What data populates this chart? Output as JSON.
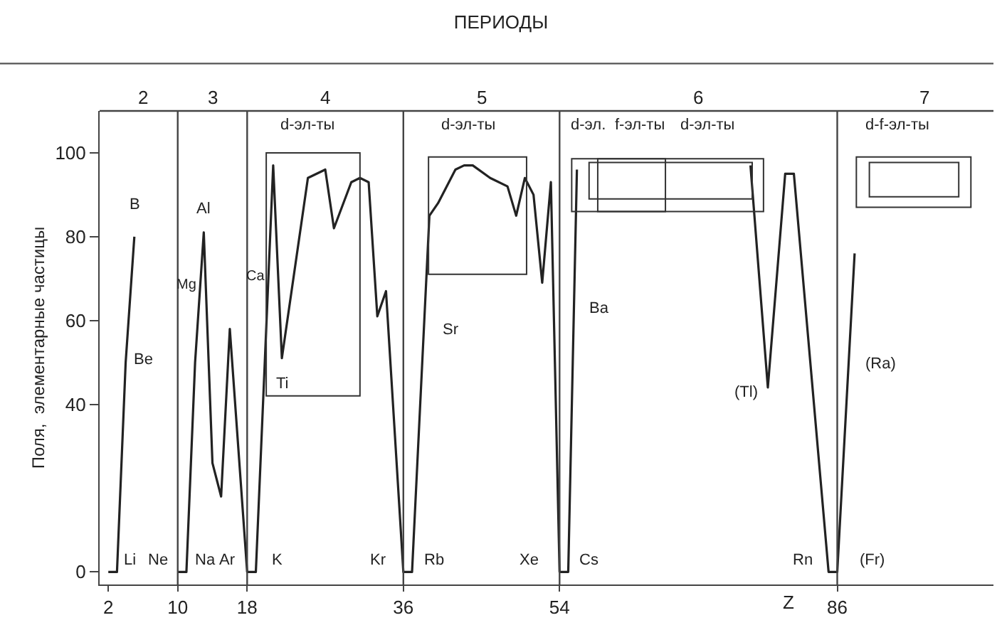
{
  "chart_data": {
    "type": "line",
    "title": "ПЕРИОДЫ",
    "xlabel": "Z",
    "ylabel": "Поля,  элементарные частицы",
    "x": [
      2,
      3,
      4,
      5,
      7,
      10,
      11,
      12,
      13,
      14,
      15,
      16,
      18,
      19,
      21,
      22,
      25,
      27,
      28,
      30,
      31,
      32,
      33,
      34,
      36,
      37,
      39,
      40,
      42,
      43,
      44,
      46,
      48,
      49,
      50,
      51,
      52,
      53,
      54,
      55,
      56,
      66,
      76,
      78,
      80,
      81,
      85,
      86,
      88
    ],
    "series": [
      {
        "color": "#222222",
        "values": [
          0,
          0,
          50,
          80,
          null,
          0,
          0,
          50,
          81,
          26,
          18,
          58,
          0,
          0,
          97,
          51,
          94,
          96,
          82,
          93,
          94,
          93,
          61,
          67,
          0,
          0,
          85,
          88,
          96,
          97,
          97,
          94,
          92,
          85,
          94,
          90,
          69,
          93,
          0,
          0,
          96,
          null,
          97,
          44,
          95,
          95,
          0,
          0,
          76
        ]
      }
    ],
    "xlim": [
      1,
      104
    ],
    "xticks": [
      2,
      10,
      18,
      36,
      54,
      86
    ],
    "ylim": [
      -3,
      110
    ],
    "yticks": [
      0,
      40,
      60,
      80,
      100
    ],
    "ref_lines": [
      {
        "axis": "x",
        "value": 10,
        "color": "#444444"
      },
      {
        "axis": "x",
        "value": 18,
        "color": "#444444"
      },
      {
        "axis": "x",
        "value": 36,
        "color": "#444444"
      },
      {
        "axis": "x",
        "value": 54,
        "color": "#444444"
      },
      {
        "axis": "x",
        "value": 86,
        "color": "#444444"
      }
    ],
    "annotations": [
      "2",
      "3",
      "4",
      "5",
      "6",
      "7",
      "B",
      "Be",
      "Li",
      "Ne",
      "Na",
      "Ar",
      "Mg",
      "Al",
      "Ca",
      "Ti",
      "K",
      "Kr",
      "Rb",
      "Xe",
      "Sr",
      "Ba",
      "Cs",
      "(Tl)",
      "Rn",
      "(Fr)",
      "(Ra)",
      "d-эл-ты",
      "d-эл-ты",
      "d-эл.",
      "f-эл-ты",
      "d-эл-ты",
      "d-f-эл-ты"
    ]
  }
}
